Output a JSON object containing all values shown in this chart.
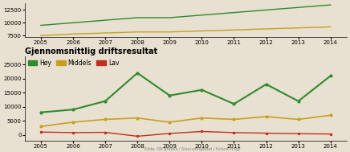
{
  "title": "Gjennomsnittlig driftsresultat",
  "legend": [
    "Høy",
    "Middels",
    "Lav"
  ],
  "legend_colors": [
    "#2e8b2e",
    "#c8a020",
    "#c03020"
  ],
  "years": [
    2005,
    2006,
    2007,
    2008,
    2009,
    2010,
    2011,
    2012,
    2013,
    2014
  ],
  "high": [
    8000,
    9000,
    12000,
    22000,
    14000,
    16000,
    11000,
    18000,
    12000,
    21000
  ],
  "middle": [
    3000,
    4500,
    5500,
    6000,
    4500,
    6000,
    5500,
    6500,
    5500,
    7000
  ],
  "low": [
    1000,
    800,
    900,
    -500,
    500,
    1200,
    800,
    600,
    400,
    300
  ],
  "top_high": [
    9500,
    10000,
    10500,
    11000,
    11000,
    11500,
    12000,
    12500,
    13000,
    13500
  ],
  "top_middle": [
    7500,
    7800,
    8000,
    8200,
    8200,
    8400,
    8600,
    8800,
    9000,
    9200
  ],
  "background_color": "#e8e0d0",
  "ylim": [
    -2000,
    28000
  ],
  "title_fontsize": 7,
  "legend_fontsize": 5.5,
  "axis_fontsize": 5
}
